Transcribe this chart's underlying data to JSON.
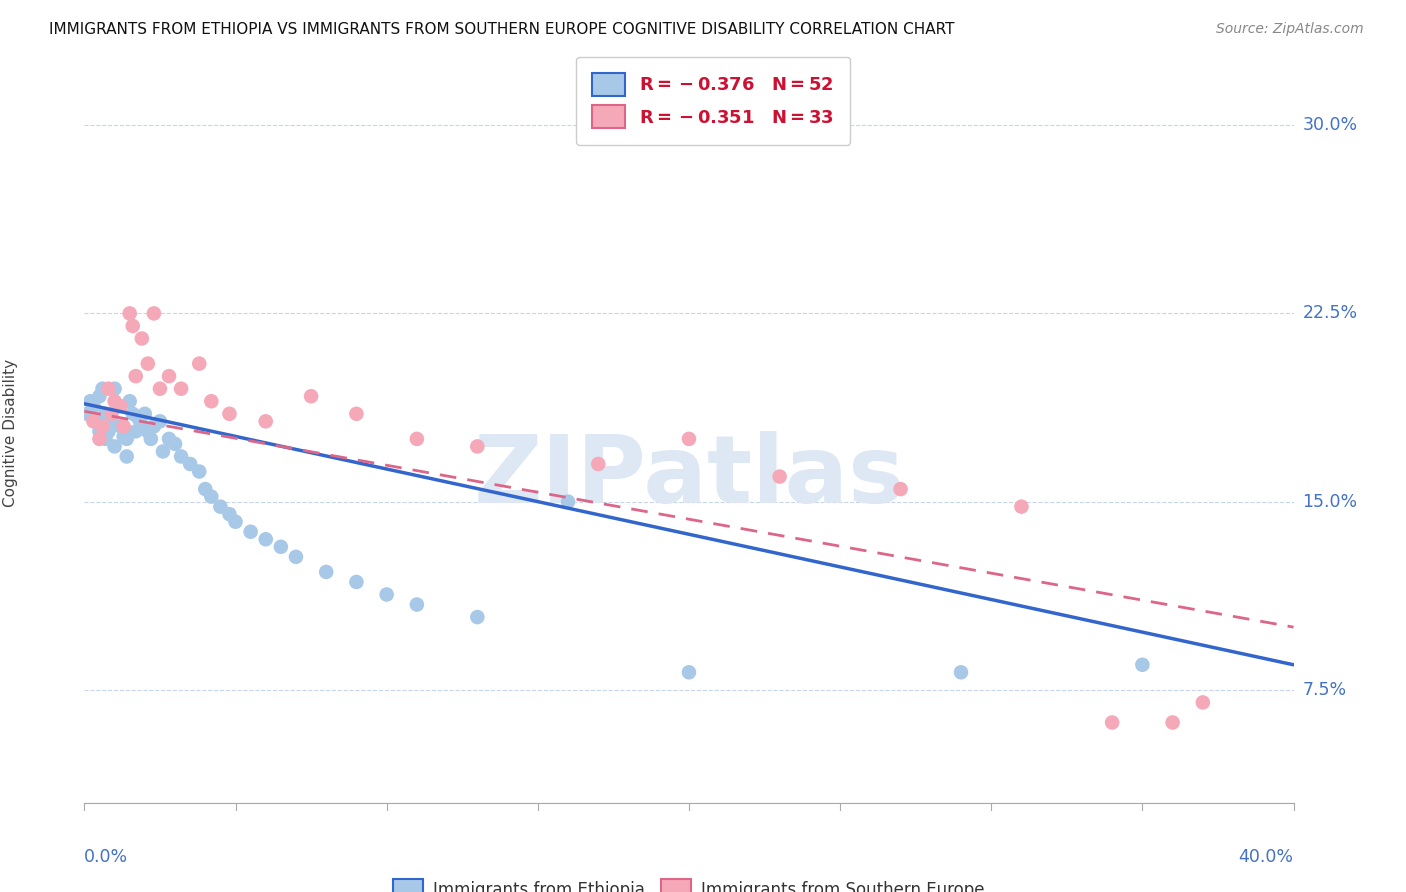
{
  "title": "IMMIGRANTS FROM ETHIOPIA VS IMMIGRANTS FROM SOUTHERN EUROPE COGNITIVE DISABILITY CORRELATION CHART",
  "source": "Source: ZipAtlas.com",
  "ylabel": "Cognitive Disability",
  "yticks": [
    0.075,
    0.15,
    0.225,
    0.3
  ],
  "ytick_labels": [
    "7.5%",
    "15.0%",
    "22.5%",
    "30.0%"
  ],
  "xlim": [
    0.0,
    0.4
  ],
  "ylim": [
    0.03,
    0.325
  ],
  "color_ethiopia": "#a8c8e8",
  "color_s_europe": "#f4a8b8",
  "color_line_ethiopia": "#3366cc",
  "color_line_s_europe": "#dd6688",
  "watermark_text": "ZIPatlas",
  "watermark_color": "#dde8f4",
  "ethiopia_x": [
    0.001,
    0.002,
    0.003,
    0.004,
    0.005,
    0.005,
    0.006,
    0.007,
    0.007,
    0.008,
    0.009,
    0.01,
    0.01,
    0.011,
    0.012,
    0.013,
    0.014,
    0.014,
    0.015,
    0.016,
    0.017,
    0.018,
    0.019,
    0.02,
    0.021,
    0.022,
    0.023,
    0.025,
    0.026,
    0.028,
    0.03,
    0.032,
    0.035,
    0.038,
    0.04,
    0.042,
    0.045,
    0.048,
    0.05,
    0.055,
    0.06,
    0.065,
    0.07,
    0.08,
    0.09,
    0.1,
    0.11,
    0.13,
    0.16,
    0.2,
    0.29,
    0.35
  ],
  "ethiopia_y": [
    0.185,
    0.19,
    0.188,
    0.182,
    0.192,
    0.178,
    0.195,
    0.185,
    0.175,
    0.178,
    0.182,
    0.195,
    0.172,
    0.188,
    0.18,
    0.176,
    0.175,
    0.168,
    0.19,
    0.185,
    0.178,
    0.183,
    0.18,
    0.185,
    0.178,
    0.175,
    0.18,
    0.182,
    0.17,
    0.175,
    0.173,
    0.168,
    0.165,
    0.162,
    0.155,
    0.152,
    0.148,
    0.145,
    0.142,
    0.138,
    0.135,
    0.132,
    0.128,
    0.122,
    0.118,
    0.113,
    0.109,
    0.104,
    0.15,
    0.082,
    0.082,
    0.085
  ],
  "s_europe_x": [
    0.003,
    0.005,
    0.006,
    0.008,
    0.009,
    0.01,
    0.012,
    0.013,
    0.015,
    0.016,
    0.017,
    0.019,
    0.021,
    0.023,
    0.025,
    0.028,
    0.032,
    0.038,
    0.042,
    0.048,
    0.06,
    0.075,
    0.09,
    0.11,
    0.13,
    0.17,
    0.2,
    0.23,
    0.27,
    0.31,
    0.34,
    0.36,
    0.37
  ],
  "s_europe_y": [
    0.182,
    0.175,
    0.18,
    0.195,
    0.185,
    0.19,
    0.188,
    0.18,
    0.225,
    0.22,
    0.2,
    0.215,
    0.205,
    0.225,
    0.195,
    0.2,
    0.195,
    0.205,
    0.19,
    0.185,
    0.182,
    0.192,
    0.185,
    0.175,
    0.172,
    0.165,
    0.175,
    0.16,
    0.155,
    0.148,
    0.062,
    0.062,
    0.07
  ],
  "line_eth_x0": 0.0,
  "line_eth_y0": 0.189,
  "line_eth_x1": 0.4,
  "line_eth_y1": 0.085,
  "line_se_x0": 0.0,
  "line_se_y0": 0.186,
  "line_se_x1": 0.4,
  "line_se_y1": 0.1
}
